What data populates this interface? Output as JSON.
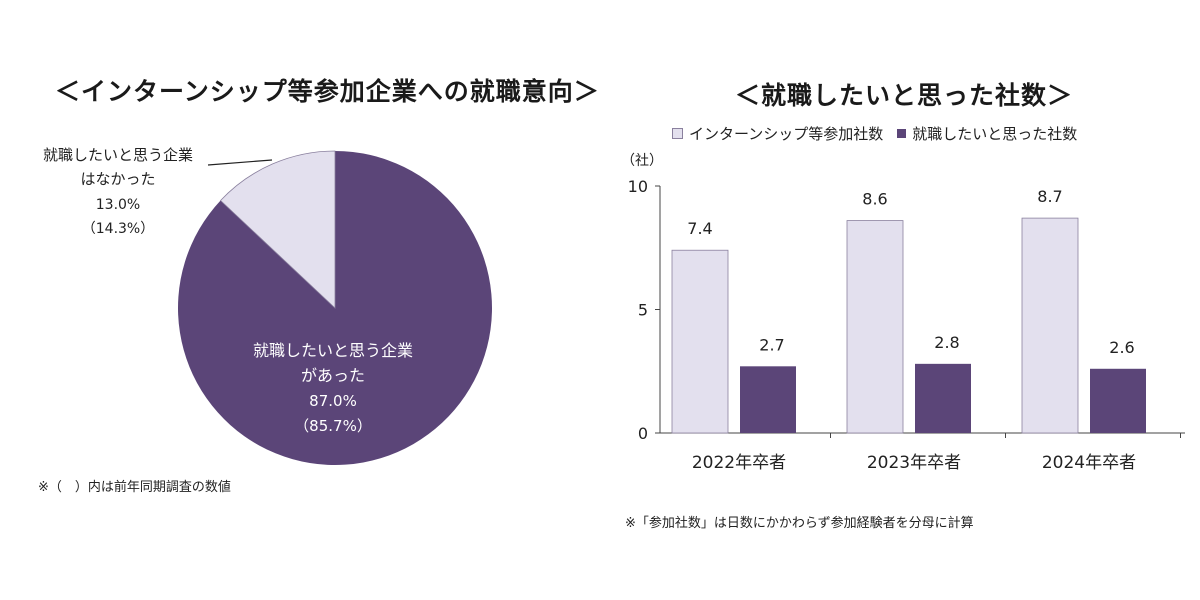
{
  "colors": {
    "light": "#e3e0ee",
    "dark": "#5b4578",
    "light_border": "#8a809e",
    "axis": "#444444"
  },
  "chart_data": [
    {
      "type": "pie",
      "title": "＜インターンシップ等参加企業への就職意向＞",
      "slices": [
        {
          "label_line1": "就職したいと思う企業",
          "label_line2": "があった",
          "value": 87.0,
          "value_text": "87.0%",
          "prev_text": "（85.7%）",
          "color": "#5b4578"
        },
        {
          "label_line1": "就職したいと思う企業",
          "label_line2": "はなかった",
          "value": 13.0,
          "value_text": "13.0%",
          "prev_text": "（14.3%）",
          "color": "#e3e0ee"
        }
      ],
      "note": "※（　）内は前年同期調査の数値"
    },
    {
      "type": "bar",
      "title": "＜就職したいと思った社数＞",
      "unit": "（社）",
      "categories": [
        "2022年卒者",
        "2023年卒者",
        "2024年卒者"
      ],
      "series": [
        {
          "name": "インターンシップ等参加社数",
          "values": [
            7.4,
            8.6,
            8.7
          ],
          "labels": [
            "7.4",
            "8.6",
            "8.7"
          ],
          "color": "#e3e0ee"
        },
        {
          "name": "就職したいと思った社数",
          "values": [
            2.7,
            2.8,
            2.6
          ],
          "labels": [
            "2.7",
            "2.8",
            "2.6"
          ],
          "color": "#5b4578"
        }
      ],
      "ylim": [
        0,
        10
      ],
      "yticks": [
        "0",
        "5",
        "10"
      ],
      "legend": "top",
      "grid": false,
      "note": "※「参加社数」は日数にかかわらず参加経験者を分母に計算"
    }
  ]
}
